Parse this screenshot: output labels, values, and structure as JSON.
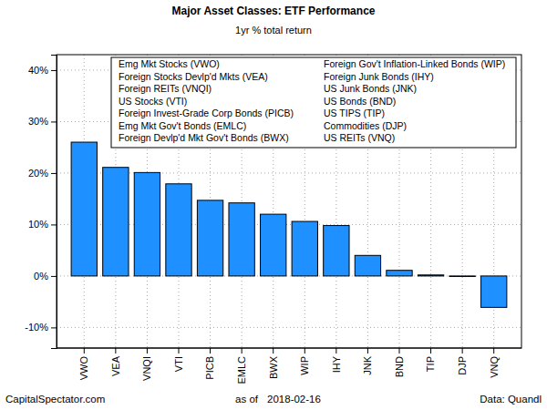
{
  "chart_data": {
    "type": "bar",
    "title": "Major Asset Classes: ETF Performance",
    "subtitle": "1yr % total return",
    "categories": [
      "VWO",
      "VEA",
      "VNQI",
      "VTI",
      "PICB",
      "EMLC",
      "BWX",
      "WIP",
      "IHY",
      "JNK",
      "BND",
      "TIP",
      "DJP",
      "VNQ"
    ],
    "values": [
      26.0,
      21.1,
      20.1,
      17.9,
      14.7,
      14.2,
      12.0,
      10.6,
      9.8,
      4.0,
      1.1,
      0.2,
      -0.1,
      -6.1
    ],
    "color": "#1e90ff",
    "ylim": [
      -14,
      43
    ],
    "yticks": [
      {
        "value": -10,
        "label": "-10%"
      },
      {
        "value": 0,
        "label": "0%"
      },
      {
        "value": 10,
        "label": "10%"
      },
      {
        "value": 20,
        "label": "20%"
      },
      {
        "value": 30,
        "label": "30%"
      },
      {
        "value": 40,
        "label": "40%"
      }
    ],
    "grid": true,
    "annotations": [
      "Emg Mkt Stocks (VWO)",
      "Foreign Stocks Devlp'd Mkts (VEA)",
      "Foreign REITs (VNQI)",
      "US Stocks (VTI)",
      "Foreign Invest-Grade Corp Bonds (PICB)",
      "Emg Mkt Gov't Bonds (EMLC)",
      "Foreign Devlp'd Mkt Gov't Bonds (BWX)",
      "Foreign Gov't Inflation-Linked Bonds (WIP)",
      "Foreign Junk Bonds (IHY)",
      "US Junk Bonds (JNK)",
      "US Bonds (BND)",
      "US TIPS (TIP)",
      "Commodities (DJP)",
      "US REITs (VNQ)"
    ],
    "footer": {
      "left": "CapitalSpectator.com",
      "center_label": "as of",
      "date": "2018-02-16",
      "right": "Data: Quandl"
    }
  }
}
